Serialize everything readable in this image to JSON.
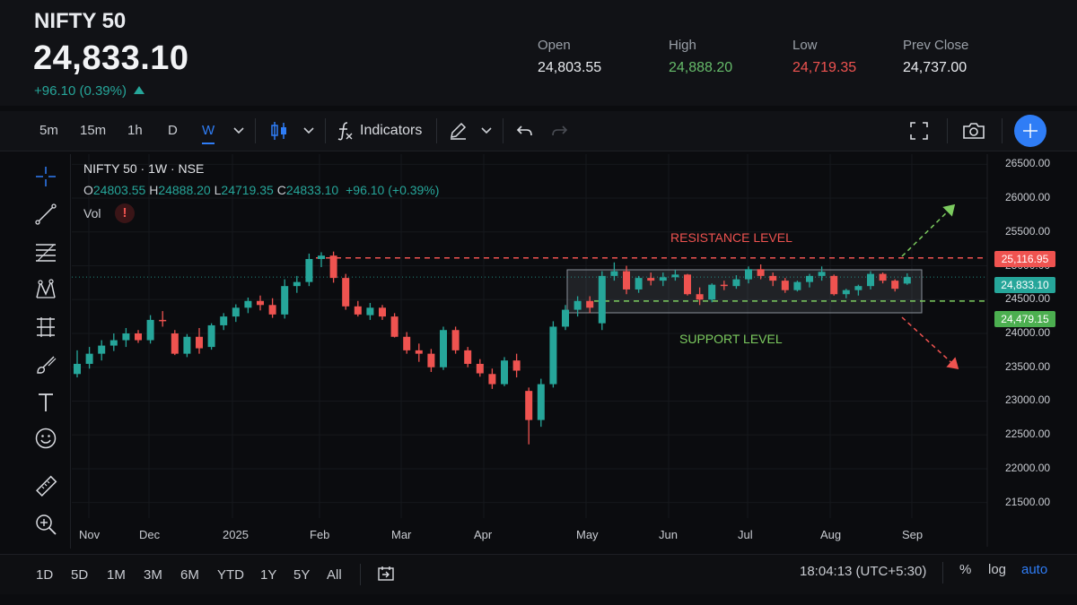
{
  "header": {
    "symbol": "NIFTY 50",
    "last_price": "24,833.10",
    "change": "+96.10 (0.39%)",
    "stats": [
      {
        "label": "Open",
        "value": "24,803.55",
        "tone": "neutral"
      },
      {
        "label": "High",
        "value": "24,888.20",
        "tone": "green"
      },
      {
        "label": "Low",
        "value": "24,719.35",
        "tone": "red"
      },
      {
        "label": "Prev Close",
        "value": "24,737.00",
        "tone": "neutral"
      }
    ]
  },
  "toolbar": {
    "timeframes": [
      "5m",
      "15m",
      "1h",
      "D",
      "W"
    ],
    "active_timeframe": "W",
    "indicators_label": "Indicators",
    "icons": [
      "chevron-down-icon",
      "candlestick-icon",
      "function-icon",
      "pencil-icon",
      "undo-icon",
      "redo-icon",
      "fullscreen-icon",
      "camera-icon",
      "plus-icon"
    ]
  },
  "left_tools": [
    "crosshair-icon",
    "trendline-icon",
    "fib-icon",
    "pattern-icon",
    "measure-icon",
    "brush-icon",
    "text-icon",
    "emoji-icon",
    "ruler-icon",
    "zoom-in-icon"
  ],
  "legend": {
    "title": "NIFTY 50 · 1W · NSE",
    "o_key": "O",
    "o_val": "24803.55",
    "h_key": "H",
    "h_val": "24888.20",
    "l_key": "L",
    "l_val": "24719.35",
    "c_key": "C",
    "c_val": "24833.10",
    "chg": "+96.10 (+0.39%)",
    "vol_label": "Vol",
    "vol_warning": "!"
  },
  "annotations": {
    "resistance": "RESISTANCE LEVEL",
    "support": "SUPPORT LEVEL"
  },
  "price_tags": {
    "resistance": "25,116.95",
    "last": "24,833.10",
    "support": "24,479.15"
  },
  "colors": {
    "up": "#26a69a",
    "down": "#ef5350",
    "accent": "#2f7df6",
    "resistance": "#ef5350",
    "support": "#7ccb5f"
  },
  "bottom_bar": {
    "ranges": [
      "1D",
      "5D",
      "1M",
      "3M",
      "6M",
      "YTD",
      "1Y",
      "5Y",
      "All"
    ],
    "clock": "18:04:13 (UTC+5:30)",
    "scale_options": [
      "%",
      "log",
      "auto"
    ]
  },
  "chart_data": {
    "type": "candlestick",
    "y_ticks": [
      "26500.00",
      "26000.00",
      "25500.00",
      "25000.00",
      "24500.00",
      "24000.00",
      "23500.00",
      "23000.00",
      "22500.00",
      "22000.00",
      "21500.00"
    ],
    "ylim": [
      21350,
      26650
    ],
    "x_ticks": [
      "Nov",
      "Dec",
      "2025",
      "Feb",
      "Mar",
      "Apr",
      "May",
      "Jun",
      "Jul",
      "Aug",
      "Sep"
    ],
    "resistance_level": 25116.95,
    "support_level": 24479.15,
    "last_close": 24833.1,
    "candles": [
      [
        23400,
        23750,
        23350,
        23550
      ],
      [
        23550,
        23800,
        23480,
        23700
      ],
      [
        23700,
        23900,
        23600,
        23820
      ],
      [
        23820,
        24000,
        23740,
        23900
      ],
      [
        23900,
        24080,
        23800,
        24000
      ],
      [
        24000,
        24050,
        23860,
        23900
      ],
      [
        23900,
        24270,
        23850,
        24200
      ],
      [
        24200,
        24330,
        24100,
        24180
      ],
      [
        24000,
        24050,
        23680,
        23700
      ],
      [
        23700,
        23990,
        23650,
        23950
      ],
      [
        23950,
        24080,
        23700,
        23780
      ],
      [
        23800,
        24150,
        23760,
        24120
      ],
      [
        24120,
        24300,
        24050,
        24250
      ],
      [
        24250,
        24430,
        24170,
        24380
      ],
      [
        24380,
        24530,
        24300,
        24480
      ],
      [
        24480,
        24560,
        24340,
        24420
      ],
      [
        24420,
        24520,
        24230,
        24280
      ],
      [
        24280,
        24800,
        24220,
        24700
      ],
      [
        24700,
        24850,
        24600,
        24760
      ],
      [
        24760,
        25180,
        24700,
        25100
      ],
      [
        25100,
        25200,
        24980,
        25150
      ],
      [
        25150,
        25210,
        24750,
        24820
      ],
      [
        24820,
        24880,
        24350,
        24400
      ],
      [
        24400,
        24480,
        24250,
        24280
      ],
      [
        24270,
        24450,
        24200,
        24380
      ],
      [
        24380,
        24420,
        24200,
        24250
      ],
      [
        24250,
        24300,
        23940,
        23950
      ],
      [
        23950,
        24020,
        23700,
        23750
      ],
      [
        23750,
        23850,
        23580,
        23700
      ],
      [
        23700,
        23770,
        23430,
        23500
      ],
      [
        23500,
        24100,
        23460,
        24050
      ],
      [
        24050,
        24100,
        23700,
        23750
      ],
      [
        23750,
        23800,
        23500,
        23550
      ],
      [
        23550,
        23620,
        23360,
        23410
      ],
      [
        23400,
        23480,
        23180,
        23250
      ],
      [
        23250,
        23650,
        23220,
        23600
      ],
      [
        23600,
        23700,
        23350,
        23450
      ],
      [
        23150,
        23200,
        22360,
        22720
      ],
      [
        22720,
        23330,
        22620,
        23250
      ],
      [
        23250,
        24180,
        23200,
        24100
      ],
      [
        24100,
        24420,
        24050,
        24350
      ],
      [
        24350,
        24550,
        24250,
        24480
      ],
      [
        24480,
        24550,
        24300,
        24380
      ],
      [
        24150,
        24920,
        24050,
        24850
      ],
      [
        24850,
        25050,
        24780,
        24920
      ],
      [
        24920,
        25000,
        24580,
        24650
      ],
      [
        24650,
        24850,
        24600,
        24820
      ],
      [
        24820,
        24900,
        24710,
        24780
      ],
      [
        24780,
        24900,
        24700,
        24830
      ],
      [
        24830,
        24940,
        24780,
        24870
      ],
      [
        24870,
        24880,
        24560,
        24580
      ],
      [
        24580,
        24680,
        24420,
        24500
      ],
      [
        24500,
        24740,
        24460,
        24720
      ],
      [
        24720,
        24780,
        24640,
        24700
      ],
      [
        24700,
        24860,
        24660,
        24800
      ],
      [
        24800,
        24990,
        24740,
        24950
      ],
      [
        24950,
        25020,
        24800,
        24850
      ],
      [
        24850,
        24900,
        24700,
        24780
      ],
      [
        24780,
        24820,
        24600,
        24640
      ],
      [
        24640,
        24780,
        24620,
        24760
      ],
      [
        24760,
        24880,
        24680,
        24850
      ],
      [
        24850,
        24990,
        24780,
        24910
      ],
      [
        24850,
        24870,
        24560,
        24580
      ],
      [
        24580,
        24660,
        24520,
        24640
      ],
      [
        24640,
        24720,
        24560,
        24700
      ],
      [
        24700,
        24920,
        24650,
        24880
      ],
      [
        24880,
        24900,
        24740,
        24780
      ],
      [
        24780,
        24800,
        24620,
        24660
      ],
      [
        24737,
        24888,
        24719,
        24833
      ]
    ]
  }
}
